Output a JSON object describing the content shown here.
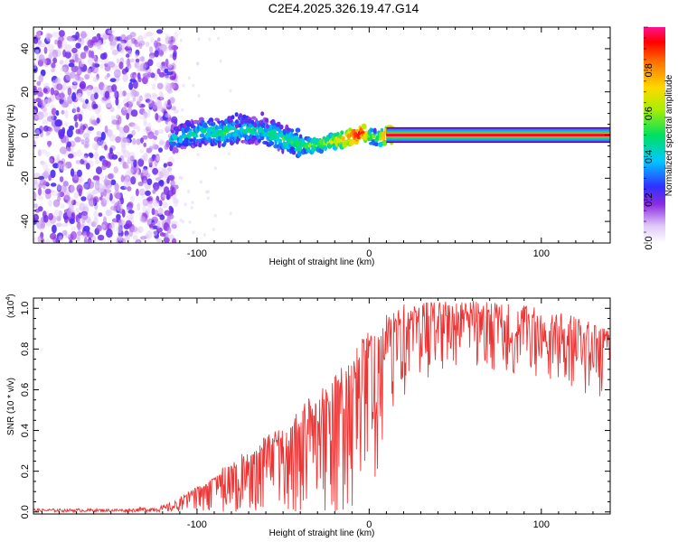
{
  "title": "C2E4.2025.326.19.47.G14",
  "chart_data": [
    {
      "type": "heatmap",
      "xlabel": "Height of straight line (km)",
      "ylabel": "Frequency (Hz)",
      "xlim": [
        -195,
        140
      ],
      "ylim": [
        -50,
        50
      ],
      "xticks": [
        -100,
        0,
        100
      ],
      "yticks": [
        -40,
        -20,
        0,
        20,
        40
      ],
      "colorbar": {
        "label": "Normalized spectral amplitude",
        "range": [
          0,
          1
        ],
        "ticks": [
          0.0,
          0.2,
          0.4,
          0.6,
          0.8
        ]
      },
      "noise_region": {
        "x": [
          -195,
          -112
        ],
        "y": [
          -50,
          48
        ]
      },
      "signal_ridge": {
        "x": [
          -115,
          -105,
          -95,
          -85,
          -75,
          -65,
          -55,
          -45,
          -35,
          -25,
          -15,
          -8,
          -3,
          0,
          5,
          10,
          15,
          140
        ],
        "freq": [
          -2,
          0,
          2,
          1,
          3,
          2,
          0,
          -3,
          -5,
          -4,
          -2,
          0,
          1,
          0,
          -2,
          0,
          0,
          0
        ],
        "amplitude": [
          0.4,
          0.45,
          0.45,
          0.5,
          0.5,
          0.45,
          0.5,
          0.5,
          0.55,
          0.6,
          0.8,
          0.95,
          0.9,
          0.6,
          0.55,
          0.9,
          1.0,
          1.0
        ]
      }
    },
    {
      "type": "line",
      "xlabel": "Height of straight line (km)",
      "ylabel": "SNR (10 * v/v)",
      "yscale_note": "(x10",
      "yscale_exp": "4",
      "yscale_close": ")",
      "xlim": [
        -195,
        140
      ],
      "ylim": [
        -0.01,
        1.05
      ],
      "xticks": [
        -100,
        0,
        100
      ],
      "yticks": [
        0.0,
        0.2,
        0.4,
        0.6,
        0.8,
        1.0
      ],
      "series_color": "#ee3333",
      "envelope": {
        "x": [
          -195,
          -140,
          -120,
          -105,
          -90,
          -80,
          -70,
          -60,
          -50,
          -40,
          -30,
          -20,
          -10,
          -5,
          0,
          5,
          10,
          15,
          20,
          30,
          40,
          50,
          60,
          70,
          80,
          90,
          100,
          110,
          120,
          130,
          140
        ],
        "low": [
          0.0,
          0.0,
          0.0,
          0.0,
          0.0,
          0.0,
          0.0,
          0.0,
          0.0,
          0.0,
          0.0,
          0.0,
          0.02,
          0.05,
          0.1,
          0.2,
          0.35,
          0.45,
          0.55,
          0.62,
          0.65,
          0.68,
          0.7,
          0.7,
          0.68,
          0.66,
          0.62,
          0.6,
          0.58,
          0.55,
          0.5
        ],
        "high": [
          0.02,
          0.02,
          0.04,
          0.1,
          0.18,
          0.26,
          0.3,
          0.38,
          0.45,
          0.52,
          0.6,
          0.68,
          0.75,
          0.85,
          0.9,
          0.98,
          1.0,
          1.0,
          1.02,
          1.03,
          1.03,
          1.04,
          1.04,
          1.03,
          1.02,
          1.02,
          1.0,
          0.98,
          0.96,
          0.93,
          0.9
        ]
      }
    }
  ]
}
